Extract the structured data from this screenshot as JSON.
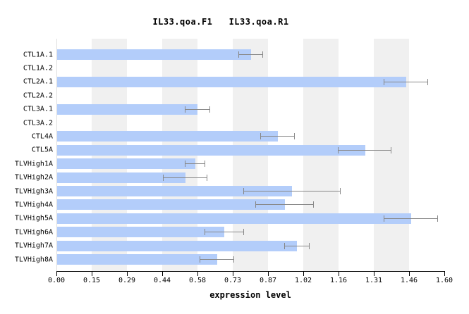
{
  "chart_data": {
    "type": "bar",
    "orientation": "horizontal",
    "title": "IL33.qoa.F1   IL33.qoa.R1",
    "xlabel": "expression level",
    "ylabel": "",
    "categories": [
      "CTL1A.1",
      "CTL1A.2",
      "CTL2A.1",
      "CTL2A.2",
      "CTL3A.1",
      "CTL3A.2",
      "CTL4A",
      "CTL5A",
      "TLVHigh1A",
      "TLVHigh2A",
      "TLVHigh3A",
      "TLVHigh4A",
      "TLVHigh5A",
      "TLVHigh6A",
      "TLVHigh7A",
      "TLVHigh8A"
    ],
    "values": [
      0.8,
      0,
      1.44,
      0,
      0.58,
      0,
      0.91,
      1.27,
      0.57,
      0.53,
      0.97,
      0.94,
      1.46,
      0.69,
      0.99,
      0.66
    ],
    "errors": [
      0.05,
      0,
      0.09,
      0,
      0.05,
      0,
      0.07,
      0.11,
      0.04,
      0.09,
      0.2,
      0.12,
      0.11,
      0.08,
      0.05,
      0.07
    ],
    "xticks": [
      "0.00",
      "0.15",
      "0.29",
      "0.44",
      "0.58",
      "0.73",
      "0.87",
      "1.02",
      "1.16",
      "1.31",
      "1.46",
      "1.60"
    ],
    "xlim": [
      0,
      1.6
    ],
    "grid": false,
    "legend": "none",
    "band_tick_intervals": [
      [
        1,
        2
      ],
      [
        3,
        4
      ],
      [
        5,
        6
      ],
      [
        7,
        8
      ],
      [
        9,
        10
      ]
    ],
    "colors": {
      "bar": "#b3cdfa",
      "error": "#888888",
      "band": "#f0f0f0",
      "axis": "#000000",
      "zero_line": "#e0e0e0",
      "background": "#ffffff",
      "text": "#000000"
    }
  }
}
